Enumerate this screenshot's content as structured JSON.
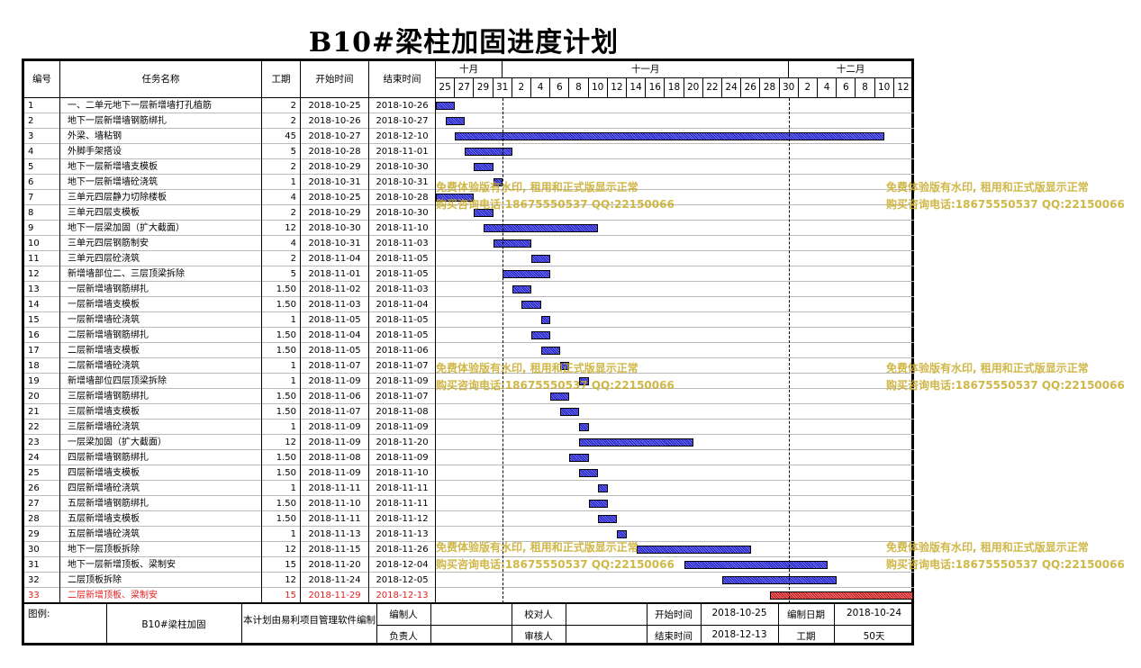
{
  "title": "B10#梁柱加固进度计划",
  "header": {
    "no": "编号",
    "name": "任务名称",
    "dur": "工期",
    "start": "开始时间",
    "end": "结束时间",
    "months": [
      {
        "label": "十月",
        "first_day": "25",
        "last_day": "31"
      },
      {
        "label": "十一月",
        "first_day": "2",
        "last_day": "30"
      },
      {
        "label": "十二月",
        "first_day": "2",
        "last_day": "12"
      }
    ],
    "days": [
      "25",
      "27",
      "29",
      "31",
      "2",
      "4",
      "6",
      "8",
      "10",
      "12",
      "14",
      "16",
      "18",
      "20",
      "22",
      "24",
      "26",
      "28",
      "30",
      "2",
      "4",
      "6",
      "8",
      "10",
      "12"
    ]
  },
  "tasks": [
    {
      "no": "1",
      "name": "一、二单元地下一层新增墙打孔植筋",
      "dur": "2",
      "start": "2018-10-25",
      "end": "2018-10-26",
      "s": "2018-10-25",
      "e": "2018-10-26"
    },
    {
      "no": "2",
      "name": "地下一层新增墙钢筋绑扎",
      "dur": "2",
      "start": "2018-10-26",
      "end": "2018-10-27",
      "s": "2018-10-26",
      "e": "2018-10-27"
    },
    {
      "no": "3",
      "name": "外梁、墙粘钢",
      "dur": "45",
      "start": "2018-10-27",
      "end": "2018-12-10",
      "s": "2018-10-27",
      "e": "2018-12-10"
    },
    {
      "no": "4",
      "name": "外脚手架搭设",
      "dur": "5",
      "start": "2018-10-28",
      "end": "2018-11-01",
      "s": "2018-10-28",
      "e": "2018-11-01"
    },
    {
      "no": "5",
      "name": "地下一层新增墙支模板",
      "dur": "2",
      "start": "2018-10-29",
      "end": "2018-10-30",
      "s": "2018-10-29",
      "e": "2018-10-30"
    },
    {
      "no": "6",
      "name": "地下一层新增墙砼浇筑",
      "dur": "1",
      "start": "2018-10-31",
      "end": "2018-10-31",
      "s": "2018-10-31",
      "e": "2018-10-31"
    },
    {
      "no": "7",
      "name": "三单元四层静力切除楼板",
      "dur": "4",
      "start": "2018-10-25",
      "end": "2018-10-28",
      "s": "2018-10-25",
      "e": "2018-10-28"
    },
    {
      "no": "8",
      "name": "三单元四层支模板",
      "dur": "2",
      "start": "2018-10-29",
      "end": "2018-10-30",
      "s": "2018-10-29",
      "e": "2018-10-30"
    },
    {
      "no": "9",
      "name": "地下一层梁加固（扩大截面）",
      "dur": "12",
      "start": "2018-10-30",
      "end": "2018-11-10",
      "s": "2018-10-30",
      "e": "2018-11-10"
    },
    {
      "no": "10",
      "name": "三单元四层钢筋制安",
      "dur": "4",
      "start": "2018-10-31",
      "end": "2018-11-03",
      "s": "2018-10-31",
      "e": "2018-11-03"
    },
    {
      "no": "11",
      "name": "三单元四层砼浇筑",
      "dur": "2",
      "start": "2018-11-04",
      "end": "2018-11-05",
      "s": "2018-11-04",
      "e": "2018-11-05"
    },
    {
      "no": "12",
      "name": "新增墙部位二、三层顶梁拆除",
      "dur": "5",
      "start": "2018-11-01",
      "end": "2018-11-05",
      "s": "2018-11-01",
      "e": "2018-11-05"
    },
    {
      "no": "13",
      "name": "一层新增墙钢筋绑扎",
      "dur": "1.50",
      "start": "2018-11-02",
      "end": "2018-11-03",
      "s": "2018-11-02",
      "e": "2018-11-03"
    },
    {
      "no": "14",
      "name": "一层新增墙支模板",
      "dur": "1.50",
      "start": "2018-11-03",
      "end": "2018-11-04",
      "s": "2018-11-03",
      "e": "2018-11-04"
    },
    {
      "no": "15",
      "name": "一层新增墙砼浇筑",
      "dur": "1",
      "start": "2018-11-05",
      "end": "2018-11-05",
      "s": "2018-11-05",
      "e": "2018-11-05"
    },
    {
      "no": "16",
      "name": "二层新增墙钢筋绑扎",
      "dur": "1.50",
      "start": "2018-11-04",
      "end": "2018-11-05",
      "s": "2018-11-04",
      "e": "2018-11-05"
    },
    {
      "no": "17",
      "name": "二层新增墙支模板",
      "dur": "1.50",
      "start": "2018-11-05",
      "end": "2018-11-06",
      "s": "2018-11-05",
      "e": "2018-11-06"
    },
    {
      "no": "18",
      "name": "二层新增墙砼浇筑",
      "dur": "1",
      "start": "2018-11-07",
      "end": "2018-11-07",
      "s": "2018-11-07",
      "e": "2018-11-07"
    },
    {
      "no": "19",
      "name": "新增墙部位四层顶梁拆除",
      "dur": "1",
      "start": "2018-11-09",
      "end": "2018-11-09",
      "s": "2018-11-09",
      "e": "2018-11-09"
    },
    {
      "no": "20",
      "name": "三层新增墙钢筋绑扎",
      "dur": "1.50",
      "start": "2018-11-06",
      "end": "2018-11-07",
      "s": "2018-11-06",
      "e": "2018-11-07"
    },
    {
      "no": "21",
      "name": "三层新增墙支模板",
      "dur": "1.50",
      "start": "2018-11-07",
      "end": "2018-11-08",
      "s": "2018-11-07",
      "e": "2018-11-08"
    },
    {
      "no": "22",
      "name": "三层新增墙砼浇筑",
      "dur": "1",
      "start": "2018-11-09",
      "end": "2018-11-09",
      "s": "2018-11-09",
      "e": "2018-11-09"
    },
    {
      "no": "23",
      "name": "一层梁加固（扩大截面）",
      "dur": "12",
      "start": "2018-11-09",
      "end": "2018-11-20",
      "s": "2018-11-09",
      "e": "2018-11-20"
    },
    {
      "no": "24",
      "name": "四层新增墙钢筋绑扎",
      "dur": "1.50",
      "start": "2018-11-08",
      "end": "2018-11-09",
      "s": "2018-11-08",
      "e": "2018-11-09"
    },
    {
      "no": "25",
      "name": "四层新增墙支模板",
      "dur": "1.50",
      "start": "2018-11-09",
      "end": "2018-11-10",
      "s": "2018-11-09",
      "e": "2018-11-10"
    },
    {
      "no": "26",
      "name": "四层新增墙砼浇筑",
      "dur": "1",
      "start": "2018-11-11",
      "end": "2018-11-11",
      "s": "2018-11-11",
      "e": "2018-11-11"
    },
    {
      "no": "27",
      "name": "五层新增墙钢筋绑扎",
      "dur": "1.50",
      "start": "2018-11-10",
      "end": "2018-11-11",
      "s": "2018-11-10",
      "e": "2018-11-11"
    },
    {
      "no": "28",
      "name": "五层新增墙支模板",
      "dur": "1.50",
      "start": "2018-11-11",
      "end": "2018-11-12",
      "s": "2018-11-11",
      "e": "2018-11-12"
    },
    {
      "no": "29",
      "name": "五层新增墙砼浇筑",
      "dur": "1",
      "start": "2018-11-13",
      "end": "2018-11-13",
      "s": "2018-11-13",
      "e": "2018-11-13"
    },
    {
      "no": "30",
      "name": "地下一层顶板拆除",
      "dur": "12",
      "start": "2018-11-15",
      "end": "2018-11-26",
      "s": "2018-11-15",
      "e": "2018-11-26"
    },
    {
      "no": "31",
      "name": "地下一层新增顶板、梁制安",
      "dur": "15",
      "start": "2018-11-20",
      "end": "2018-12-04",
      "s": "2018-11-20",
      "e": "2018-12-04"
    },
    {
      "no": "32",
      "name": "二层顶板拆除",
      "dur": "12",
      "start": "2018-11-24",
      "end": "2018-12-05",
      "s": "2018-11-24",
      "e": "2018-12-05"
    },
    {
      "no": "33",
      "name": "二层新增顶板、梁制安",
      "dur": "15",
      "start": "2018-11-29",
      "end": "2018-12-13",
      "s": "2018-11-29",
      "e": "2018-12-13",
      "critical": true
    }
  ],
  "footer": {
    "legend": "图例:",
    "project": "B10#梁柱加固",
    "note": "本计划由易利项目管理软件编制",
    "compiler": "编制人",
    "checker": "校对人",
    "owner": "负责人",
    "reviewer": "审核人",
    "start_label": "开始时间",
    "start_value": "2018-10-25",
    "end_label": "结束时间",
    "end_value": "2018-12-13",
    "date_label": "编制日期",
    "date_value": "2018-10-24",
    "dur_label": "工期",
    "dur_value": "50天"
  },
  "watermark": {
    "line1": "免费体验版有水印, 租用和正式版显示正常",
    "line2": "购买咨询电话:18675550537 QQ:22150066"
  },
  "colors": {
    "bar": "#4040d0",
    "critical": "#d03030",
    "watermark": "#c8aa28"
  }
}
